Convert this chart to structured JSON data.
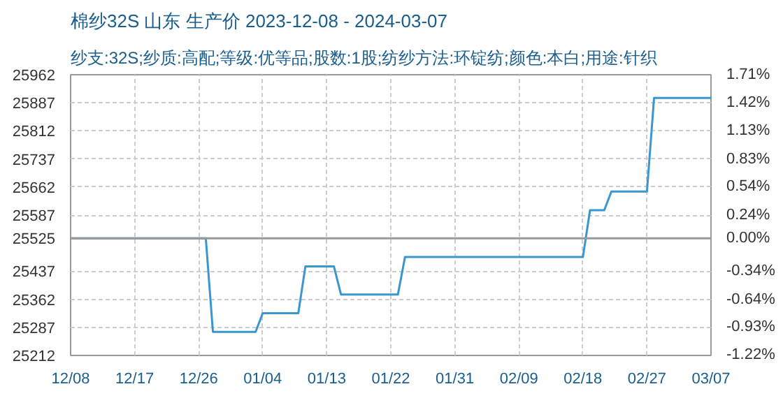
{
  "chart_data": {
    "type": "line",
    "title": "棉纱32S 山东 生产价 2023-12-08 - 2024-03-07",
    "subtitle": "纱支:32S;纱质:高配;等级:优等品;股数:1股;纺纱方法:环锭纺;颜色:本白;用途:针织",
    "x": [
      "2023-12-08",
      "2023-12-27",
      "2023-12-28",
      "2024-01-03",
      "2024-01-04",
      "2024-01-09",
      "2024-01-10",
      "2024-01-14",
      "2024-01-15",
      "2024-01-23",
      "2024-01-24",
      "2024-02-18",
      "2024-02-19",
      "2024-02-21",
      "2024-02-22",
      "2024-02-27",
      "2024-02-28",
      "2024-03-07"
    ],
    "series": [
      {
        "color": "#3a96d0",
        "values": [
          25525,
          25525,
          25275,
          25275,
          25325,
          25325,
          25450,
          25450,
          25375,
          25375,
          25475,
          25475,
          25600,
          25600,
          25650,
          25650,
          25900,
          25900
        ]
      }
    ],
    "xlim": [
      "2023-12-08",
      "2024-03-07"
    ],
    "xticks": [
      {
        "value": "2023-12-08",
        "label": "12/08"
      },
      {
        "value": "2023-12-17",
        "label": "12/17"
      },
      {
        "value": "2023-12-26",
        "label": "12/26"
      },
      {
        "value": "2024-01-04",
        "label": "01/04"
      },
      {
        "value": "2024-01-13",
        "label": "01/13"
      },
      {
        "value": "2024-01-22",
        "label": "01/22"
      },
      {
        "value": "2024-01-31",
        "label": "01/31"
      },
      {
        "value": "2024-02-09",
        "label": "02/09"
      },
      {
        "value": "2024-02-18",
        "label": "02/18"
      },
      {
        "value": "2024-02-27",
        "label": "02/27"
      },
      {
        "value": "2024-03-07",
        "label": "03/07"
      }
    ],
    "ylim": [
      25212,
      25962
    ],
    "yticks": [
      25212,
      25287,
      25362,
      25437,
      25525,
      25587,
      25662,
      25737,
      25812,
      25887,
      25962
    ],
    "y2lim": [
      -1.226,
      1.712
    ],
    "y2ticks": [
      {
        "value": -1.22,
        "label": "-1.22%"
      },
      {
        "value": -0.93,
        "label": "-0.93%"
      },
      {
        "value": -0.64,
        "label": "-0.64%"
      },
      {
        "value": -0.34,
        "label": "-0.34%"
      },
      {
        "value": 0,
        "label": "0.00%"
      },
      {
        "value": 0.24,
        "label": "0.24%"
      },
      {
        "value": 0.54,
        "label": "0.54%"
      },
      {
        "value": 0.83,
        "label": "0.83%"
      },
      {
        "value": 1.13,
        "label": "1.13%"
      },
      {
        "value": 1.42,
        "label": "1.42%"
      },
      {
        "value": 1.71,
        "label": "1.71%"
      }
    ],
    "ref_lines": [
      {
        "axis": "y",
        "value": 25525,
        "color": "#999999"
      }
    ],
    "grid": true
  }
}
